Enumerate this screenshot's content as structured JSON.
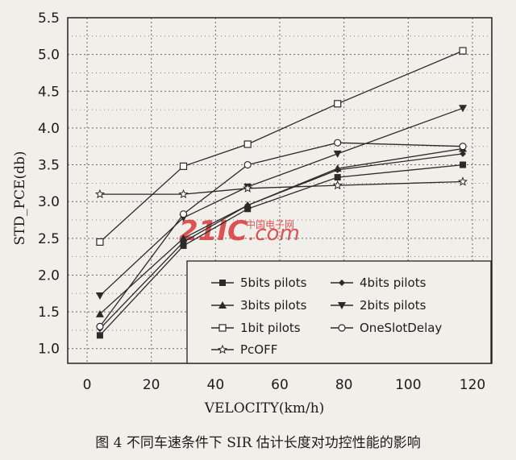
{
  "chart_data": {
    "type": "line",
    "xlabel": "VELOCITY(km/h)",
    "ylabel": "STD_PCE(db)",
    "xlim": [
      -10,
      125
    ],
    "ylim": [
      0.8,
      5.5
    ],
    "x_ticks": [
      0,
      20,
      40,
      60,
      80,
      100,
      120
    ],
    "y_ticks": [
      1.0,
      1.5,
      2.0,
      2.5,
      3.0,
      3.5,
      4.0,
      4.5,
      5.0,
      5.5
    ],
    "x_tick_labels": [
      "0",
      "20",
      "40",
      "60",
      "80",
      "100",
      "120"
    ],
    "y_tick_labels": [
      "1.0",
      "1.5",
      "2.0",
      "2.5",
      "3.0",
      "3.5",
      "4.0",
      "4.5",
      "5.0",
      "5.5"
    ],
    "grid": "dotted",
    "legend_position": "bottom-right",
    "series": [
      {
        "name": "5bits pilots",
        "marker": "filled-square",
        "x": [
          4,
          30,
          50,
          78,
          117
        ],
        "y": [
          1.18,
          2.4,
          2.9,
          3.33,
          3.5
        ]
      },
      {
        "name": "4bits pilots",
        "marker": "filled-diamond",
        "x": [
          4,
          30,
          50,
          78,
          117
        ],
        "y": [
          1.27,
          2.45,
          2.95,
          3.43,
          3.65
        ]
      },
      {
        "name": "3bits pilots",
        "marker": "filled-triangle-up",
        "x": [
          4,
          30,
          50,
          78,
          117
        ],
        "y": [
          1.47,
          2.5,
          2.95,
          3.45,
          3.72
        ]
      },
      {
        "name": "2bits pilots",
        "marker": "filled-triangle-down",
        "x": [
          4,
          30,
          50,
          78,
          117
        ],
        "y": [
          1.72,
          2.78,
          3.2,
          3.65,
          4.27
        ]
      },
      {
        "name": "1bit pilots",
        "marker": "open-square",
        "x": [
          4,
          30,
          50,
          78,
          117
        ],
        "y": [
          2.45,
          3.48,
          3.78,
          4.33,
          5.05
        ]
      },
      {
        "name": "OneSlotDelay",
        "marker": "open-circle",
        "x": [
          4,
          30,
          50,
          78,
          117
        ],
        "y": [
          1.3,
          2.83,
          3.5,
          3.8,
          3.75
        ]
      },
      {
        "name": "PcOFF",
        "marker": "open-star",
        "x": [
          4,
          30,
          50,
          78,
          117
        ],
        "y": [
          3.1,
          3.1,
          3.18,
          3.22,
          3.27
        ]
      }
    ],
    "caption": "图 4 不同车速条件下 SIR 估计长度对功控性能的影响"
  },
  "watermark": {
    "logo_text": "21IC",
    "sub_text": ".com",
    "cn_text": "中国电子网",
    "color": "#d8383c"
  },
  "colors": {
    "line": "#2a2a2a",
    "background": "#f1efe9",
    "grid": "#6a6a6a"
  }
}
